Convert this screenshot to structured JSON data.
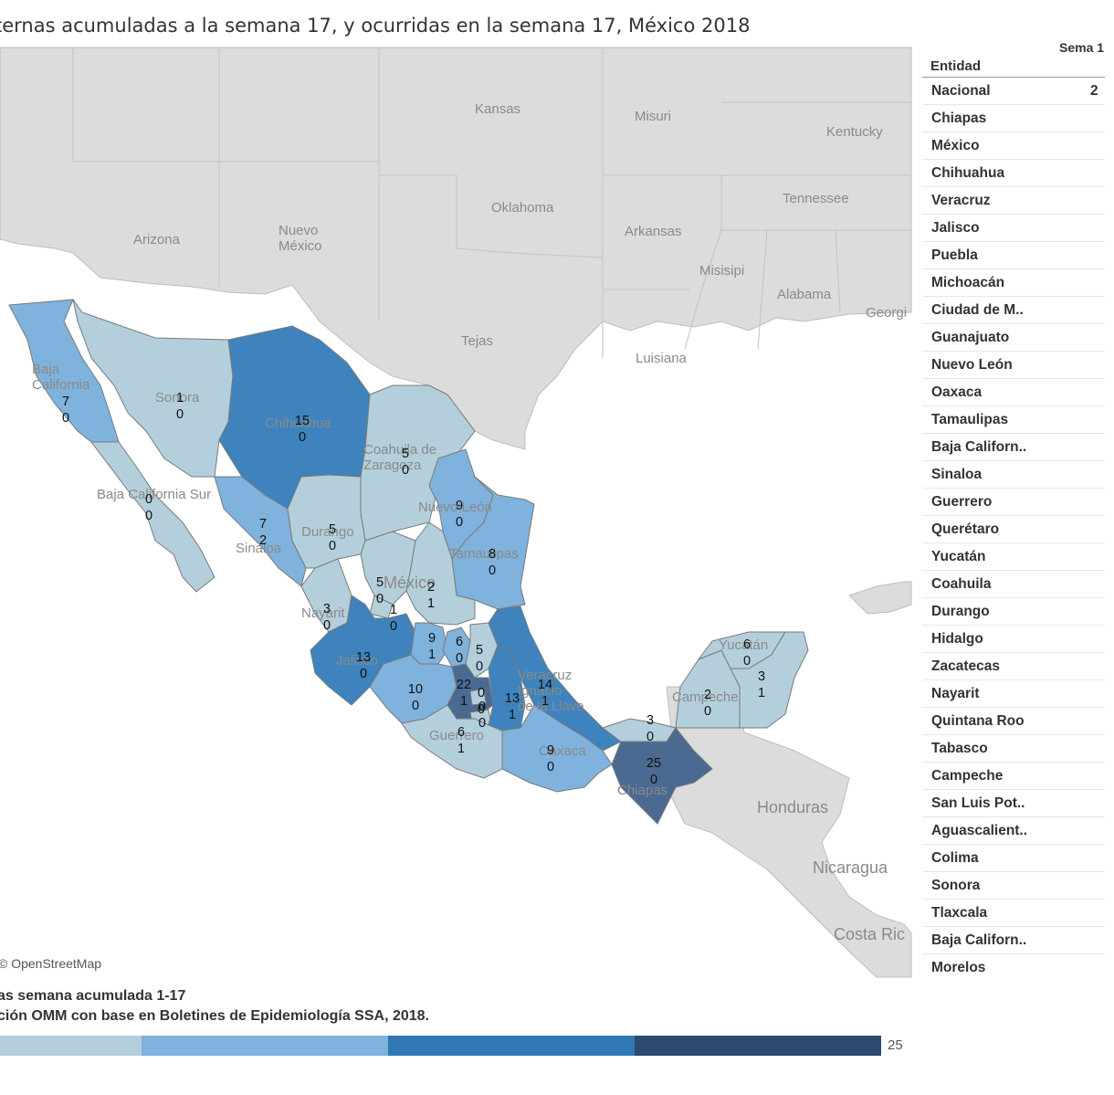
{
  "title": "ternas acumuladas a la semana 17, y ocurridas en la semana 17, México 2018",
  "map": {
    "credit": "© OpenStreetMap",
    "geo_labels": [
      "Kansas",
      "Misuri",
      "Kentucky",
      "Oklahoma",
      "Tennessee",
      "Arizona",
      "Nuevo México",
      "Arkansas",
      "Misisipi",
      "Alabama",
      "Georgi",
      "Tejas",
      "Luisiana",
      "Baja California",
      "Sonora",
      "Chihuahua",
      "Coahuila de Zaragoza",
      "Baja California Sur",
      "Nuevo León",
      "Durango",
      "Sinaloa",
      "Tamaulipas",
      "México",
      "Nayarit",
      "Jalisco",
      "Yucatán",
      "Veracruz Ignacio de la Llave",
      "Campeche",
      "Guerrero",
      "Oaxaca",
      "Chiapas",
      "Honduras",
      "Nicaragua",
      "Costa Ric"
    ],
    "states": [
      {
        "name": "Baja California",
        "acum": "7",
        "sem": "0",
        "fill": "#7fb2dc"
      },
      {
        "name": "Sonora",
        "acum": "1",
        "sem": "0",
        "fill": "#b3cfdb"
      },
      {
        "name": "Chihuahua",
        "acum": "15",
        "sem": "0",
        "fill": "#3e83bd"
      },
      {
        "name": "Coahuila",
        "acum": "5",
        "sem": "0",
        "fill": "#b3cfdb"
      },
      {
        "name": "Baja California Sur",
        "acum": "0",
        "sem": "0",
        "fill": "#b3cfdb"
      },
      {
        "name": "Nuevo León",
        "acum": "9",
        "sem": "0",
        "fill": "#7fb2dc"
      },
      {
        "name": "Sinaloa",
        "acum": "7",
        "sem": "2",
        "fill": "#7fb2dc"
      },
      {
        "name": "Durango",
        "acum": "5",
        "sem": "0",
        "fill": "#b3cfdb"
      },
      {
        "name": "Tamaulipas",
        "acum": "8",
        "sem": "0",
        "fill": "#7fb2dc"
      },
      {
        "name": "Zacatecas",
        "acum": "5",
        "sem": "0",
        "fill": "#b3cfdb"
      },
      {
        "name": "San Luis Potosí",
        "acum": "2",
        "sem": "1",
        "fill": "#b3cfdb"
      },
      {
        "name": "Nayarit",
        "acum": "3",
        "sem": "0",
        "fill": "#b3cfdb"
      },
      {
        "name": "Aguascalientes",
        "acum": "1",
        "sem": "0",
        "fill": "#b3cfdb"
      },
      {
        "name": "Guanajuato",
        "acum": "9",
        "sem": "1",
        "fill": "#7fb2dc"
      },
      {
        "name": "Querétaro",
        "acum": "6",
        "sem": "0",
        "fill": "#7fb2dc"
      },
      {
        "name": "Hidalgo",
        "acum": "5",
        "sem": "0",
        "fill": "#b3cfdb"
      },
      {
        "name": "Jalisco",
        "acum": "13",
        "sem": "0",
        "fill": "#3e83bd"
      },
      {
        "name": "Michoacán",
        "acum": "10",
        "sem": "0",
        "fill": "#7fb2dc"
      },
      {
        "name": "México",
        "acum": "22",
        "sem": "1",
        "fill": "#4a6a92"
      },
      {
        "name": "Ciudad de México",
        "acum": "0",
        "sem": "0",
        "fill": "#b3cfdb"
      },
      {
        "name": "Morelos",
        "acum": "0",
        "sem": "0",
        "fill": "#b3cfdb"
      },
      {
        "name": "Puebla",
        "acum": "13",
        "sem": "1",
        "fill": "#3e83bd"
      },
      {
        "name": "Veracruz",
        "acum": "14",
        "sem": "1",
        "fill": "#3e83bd"
      },
      {
        "name": "Guerrero",
        "acum": "6",
        "sem": "1",
        "fill": "#b3cfdb"
      },
      {
        "name": "Oaxaca",
        "acum": "9",
        "sem": "0",
        "fill": "#7fb2dc"
      },
      {
        "name": "Tabasco",
        "acum": "3",
        "sem": "0",
        "fill": "#b3cfdb"
      },
      {
        "name": "Chiapas",
        "acum": "25",
        "sem": "0",
        "fill": "#4a6a92"
      },
      {
        "name": "Campeche",
        "acum": "2",
        "sem": "0",
        "fill": "#b3cfdb"
      },
      {
        "name": "Yucatán",
        "acum": "6",
        "sem": "0",
        "fill": "#b3cfdb"
      },
      {
        "name": "Quintana Roo",
        "acum": "3",
        "sem": "1",
        "fill": "#b3cfdb"
      }
    ]
  },
  "table": {
    "col_header": "Sema 1",
    "entidad_header": "Entidad",
    "rows": [
      {
        "label": "Nacional",
        "value": "2"
      },
      {
        "label": "Chiapas",
        "value": ""
      },
      {
        "label": "México",
        "value": ""
      },
      {
        "label": "Chihuahua",
        "value": ""
      },
      {
        "label": "Veracruz",
        "value": ""
      },
      {
        "label": "Jalisco",
        "value": ""
      },
      {
        "label": "Puebla",
        "value": ""
      },
      {
        "label": "Michoacán",
        "value": ""
      },
      {
        "label": "Ciudad de M..",
        "value": ""
      },
      {
        "label": "Guanajuato",
        "value": ""
      },
      {
        "label": "Nuevo León",
        "value": ""
      },
      {
        "label": "Oaxaca",
        "value": ""
      },
      {
        "label": "Tamaulipas",
        "value": ""
      },
      {
        "label": "Baja Californ..",
        "value": ""
      },
      {
        "label": "Sinaloa",
        "value": ""
      },
      {
        "label": "Guerrero",
        "value": ""
      },
      {
        "label": "Querétaro",
        "value": ""
      },
      {
        "label": "Yucatán",
        "value": ""
      },
      {
        "label": "Coahuila",
        "value": ""
      },
      {
        "label": "Durango",
        "value": ""
      },
      {
        "label": "Hidalgo",
        "value": ""
      },
      {
        "label": "Zacatecas",
        "value": ""
      },
      {
        "label": "Nayarit",
        "value": ""
      },
      {
        "label": "Quintana Roo",
        "value": ""
      },
      {
        "label": "Tabasco",
        "value": ""
      },
      {
        "label": "Campeche",
        "value": ""
      },
      {
        "label": "San Luis Pot..",
        "value": ""
      },
      {
        "label": "Aguascalient..",
        "value": ""
      },
      {
        "label": "Colima",
        "value": ""
      },
      {
        "label": "Sonora",
        "value": ""
      },
      {
        "label": "Tlaxcala",
        "value": ""
      },
      {
        "label": "Baja Californ..",
        "value": ""
      },
      {
        "label": "Morelos",
        "value": ""
      }
    ]
  },
  "footer": {
    "line1": "as semana acumulada 1-17",
    "line2": "ción OMM con base en Boletines de Epidemiología SSA, 2018."
  },
  "legend": {
    "max_label": "25",
    "colors": [
      "#b3cfdb",
      "#7fb2dc",
      "#2f78b4",
      "#2c4a6e"
    ]
  }
}
